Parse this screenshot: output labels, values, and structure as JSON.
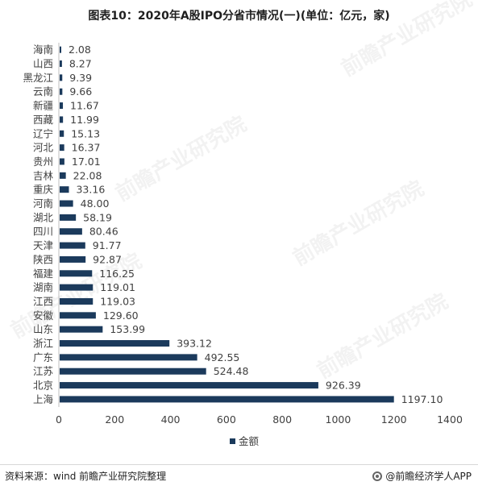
{
  "page": {
    "title": "图表10：2020年A股IPO分省市情况(一)(单位：亿元，家)",
    "source": "资料来源：wind 前瞻产业研究院整理",
    "brand": "@前瞻经济学人APP",
    "watermark": "前瞻产业研究院",
    "brand_icon": "brand-logo-icon"
  },
  "chart_data": {
    "type": "bar",
    "orientation": "horizontal",
    "title": "图表10：2020年A股IPO分省市情况(一)(单位：亿元，家)",
    "categories": [
      "海南",
      "山西",
      "黑龙江",
      "云南",
      "新疆",
      "西藏",
      "辽宁",
      "河北",
      "贵州",
      "吉林",
      "重庆",
      "河南",
      "湖北",
      "四川",
      "天津",
      "陕西",
      "福建",
      "湖南",
      "江西",
      "安徽",
      "山东",
      "浙江",
      "广东",
      "江苏",
      "北京",
      "上海"
    ],
    "series": [
      {
        "name": "金额",
        "color": "#1b3a5c",
        "values": [
          2.08,
          8.27,
          9.39,
          9.66,
          11.67,
          11.99,
          15.13,
          16.37,
          17.01,
          22.08,
          33.16,
          48.0,
          58.19,
          80.46,
          91.77,
          92.87,
          116.25,
          119.01,
          119.03,
          129.6,
          153.99,
          393.12,
          492.55,
          524.48,
          926.39,
          1197.1
        ],
        "value_labels": [
          "2.08",
          "8.27",
          "9.39",
          "9.66",
          "11.67",
          "11.99",
          "15.13",
          "16.37",
          "17.01",
          "22.08",
          "33.16",
          "48.00",
          "58.19",
          "80.46",
          "91.77",
          "92.87",
          "116.25",
          "119.01",
          "119.03",
          "129.60",
          "153.99",
          "393.12",
          "492.55",
          "524.48",
          "926.39",
          "1197.10"
        ]
      }
    ],
    "xlim": [
      0,
      1400
    ],
    "xticks": [
      "0",
      "200",
      "400",
      "600",
      "800",
      "1000",
      "1200",
      "1400"
    ],
    "grid": false,
    "legend": "bottom"
  }
}
